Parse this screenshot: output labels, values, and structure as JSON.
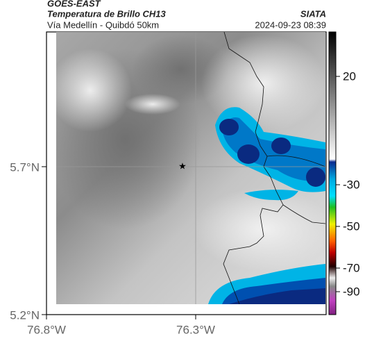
{
  "header": {
    "source": "GOES-EAST",
    "title": "Temperatura de Brillo CH13",
    "subtitle": "Vía Medellín - Quibdó 50km",
    "organization": "SIATA",
    "timestamp": "2024-09-23 08:39"
  },
  "map": {
    "lat_labels": [
      "5.7°N",
      "5.2°N"
    ],
    "lon_labels": [
      "76.8°W",
      "76.3°W"
    ],
    "colorbar_ticks": [
      20,
      -30,
      -50,
      -70,
      -90
    ]
  }
}
